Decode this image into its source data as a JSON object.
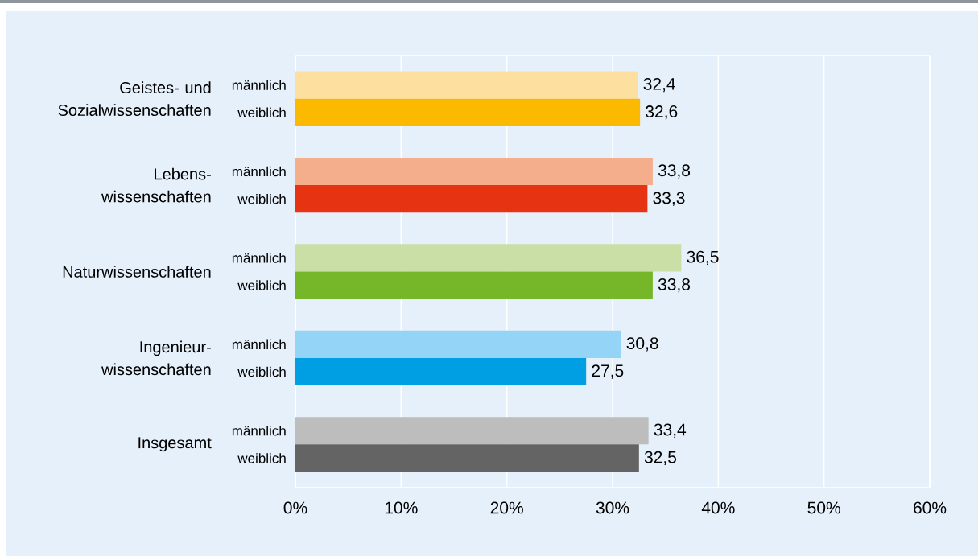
{
  "chart_data": {
    "type": "bar",
    "orientation": "horizontal",
    "categories": [
      "Geistes- und Sozialwissenschaften",
      "Lebens-wissenschaften",
      "Naturwissenschaften",
      "Ingenieur-wissenschaften",
      "Insgesamt"
    ],
    "series": [
      {
        "name": "männlich",
        "colors": [
          "#fddf9f",
          "#f5ae8c",
          "#cadfa6",
          "#94d4f6",
          "#bdbdbd"
        ],
        "values": [
          32.4,
          33.8,
          36.5,
          30.8,
          33.4
        ],
        "value_labels": [
          "32,4",
          "33,8",
          "36,5",
          "30,8",
          "33,4"
        ]
      },
      {
        "name": "weiblich",
        "colors": [
          "#fbb900",
          "#e63312",
          "#76b72a",
          "#009fe3",
          "#646464"
        ],
        "values": [
          32.6,
          33.3,
          33.8,
          27.5,
          32.5
        ],
        "value_labels": [
          "32,6",
          "33,3",
          "33,8",
          "27,5",
          "32,5"
        ]
      }
    ],
    "xlim": [
      0,
      60
    ],
    "xticks": [
      {
        "value": 0,
        "label": "0%"
      },
      {
        "value": 10,
        "label": "10%"
      },
      {
        "value": 20,
        "label": "20%"
      },
      {
        "value": 30,
        "label": "30%"
      },
      {
        "value": 40,
        "label": "40%"
      },
      {
        "value": 50,
        "label": "50%"
      },
      {
        "value": 60,
        "label": "60%"
      }
    ],
    "grid": "x"
  }
}
